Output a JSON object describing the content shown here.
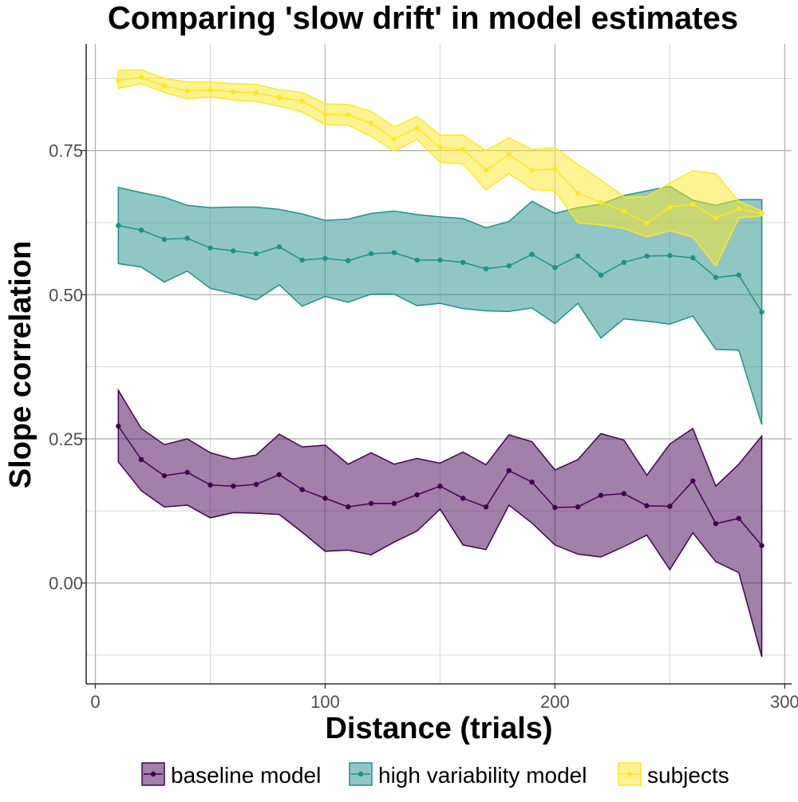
{
  "chart_data": {
    "type": "line",
    "title": "Comparing 'slow drift' in model estimates",
    "xlabel": "Distance (trials)",
    "ylabel": "Slope correlation",
    "xlim": [
      -4,
      303
    ],
    "ylim": [
      -0.175,
      0.935
    ],
    "x_ticks": [
      0,
      100,
      200,
      300
    ],
    "x_tick_labels": [
      "0",
      "100",
      "200",
      "300"
    ],
    "y_ticks": [
      0.0,
      0.25,
      0.5,
      0.75
    ],
    "y_tick_labels": [
      "0.00",
      "0.25",
      "0.50",
      "0.75"
    ],
    "x_minor_ticks": [
      50,
      150,
      250
    ],
    "y_minor_ticks": [
      -0.125,
      0.125,
      0.375,
      0.625,
      0.875
    ],
    "grid": true,
    "legend_position": "bottom",
    "x": [
      10,
      20,
      30,
      40,
      50,
      60,
      70,
      80,
      90,
      100,
      110,
      120,
      130,
      140,
      150,
      160,
      170,
      180,
      190,
      200,
      210,
      220,
      230,
      240,
      250,
      260,
      270,
      280,
      290
    ],
    "series": [
      {
        "name": "baseline model",
        "color": "#440154",
        "values": [
          0.272,
          0.214,
          0.186,
          0.192,
          0.17,
          0.168,
          0.171,
          0.188,
          0.162,
          0.147,
          0.132,
          0.138,
          0.138,
          0.153,
          0.168,
          0.147,
          0.132,
          0.195,
          0.175,
          0.131,
          0.132,
          0.152,
          0.155,
          0.134,
          0.133,
          0.177,
          0.103,
          0.112,
          0.065
        ],
        "lower": [
          0.21,
          0.16,
          0.132,
          0.135,
          0.113,
          0.122,
          0.121,
          0.119,
          0.088,
          0.055,
          0.057,
          0.049,
          0.071,
          0.09,
          0.128,
          0.066,
          0.058,
          0.135,
          0.104,
          0.066,
          0.05,
          0.045,
          0.063,
          0.083,
          0.023,
          0.087,
          0.037,
          0.018,
          -0.128
        ],
        "upper": [
          0.334,
          0.268,
          0.24,
          0.25,
          0.226,
          0.215,
          0.222,
          0.258,
          0.236,
          0.239,
          0.206,
          0.226,
          0.206,
          0.216,
          0.208,
          0.227,
          0.205,
          0.257,
          0.245,
          0.196,
          0.214,
          0.259,
          0.248,
          0.187,
          0.241,
          0.268,
          0.168,
          0.206,
          0.255
        ]
      },
      {
        "name": "high variability model",
        "color": "#21908C",
        "values": [
          0.62,
          0.612,
          0.596,
          0.598,
          0.581,
          0.576,
          0.571,
          0.583,
          0.56,
          0.563,
          0.559,
          0.571,
          0.573,
          0.56,
          0.56,
          0.556,
          0.545,
          0.55,
          0.57,
          0.547,
          0.567,
          0.534,
          0.556,
          0.567,
          0.568,
          0.564,
          0.53,
          0.534,
          0.47
        ],
        "lower": [
          0.554,
          0.548,
          0.522,
          0.541,
          0.511,
          0.502,
          0.491,
          0.517,
          0.48,
          0.497,
          0.487,
          0.501,
          0.501,
          0.481,
          0.485,
          0.476,
          0.472,
          0.471,
          0.477,
          0.45,
          0.485,
          0.425,
          0.458,
          0.454,
          0.449,
          0.463,
          0.405,
          0.404,
          0.275
        ],
        "upper": [
          0.686,
          0.677,
          0.669,
          0.655,
          0.651,
          0.652,
          0.652,
          0.648,
          0.64,
          0.629,
          0.631,
          0.641,
          0.645,
          0.639,
          0.635,
          0.632,
          0.616,
          0.627,
          0.662,
          0.641,
          0.651,
          0.657,
          0.672,
          0.68,
          0.688,
          0.664,
          0.655,
          0.665,
          0.665
        ]
      },
      {
        "name": "subjects",
        "color": "#FDE725",
        "values": [
          0.872,
          0.877,
          0.862,
          0.853,
          0.855,
          0.852,
          0.85,
          0.842,
          0.836,
          0.813,
          0.812,
          0.797,
          0.77,
          0.789,
          0.755,
          0.752,
          0.716,
          0.743,
          0.716,
          0.718,
          0.676,
          0.66,
          0.645,
          0.624,
          0.652,
          0.657,
          0.633,
          0.649,
          0.641
        ],
        "lower": [
          0.858,
          0.866,
          0.851,
          0.84,
          0.843,
          0.838,
          0.835,
          0.827,
          0.817,
          0.795,
          0.794,
          0.775,
          0.749,
          0.769,
          0.73,
          0.727,
          0.682,
          0.71,
          0.683,
          0.68,
          0.625,
          0.621,
          0.615,
          0.6,
          0.611,
          0.6,
          0.55,
          0.633,
          0.637
        ],
        "upper": [
          0.889,
          0.89,
          0.875,
          0.869,
          0.869,
          0.866,
          0.865,
          0.855,
          0.851,
          0.831,
          0.83,
          0.818,
          0.791,
          0.809,
          0.777,
          0.777,
          0.75,
          0.772,
          0.752,
          0.755,
          0.726,
          0.699,
          0.67,
          0.67,
          0.694,
          0.715,
          0.71,
          0.662,
          0.645
        ]
      }
    ]
  }
}
